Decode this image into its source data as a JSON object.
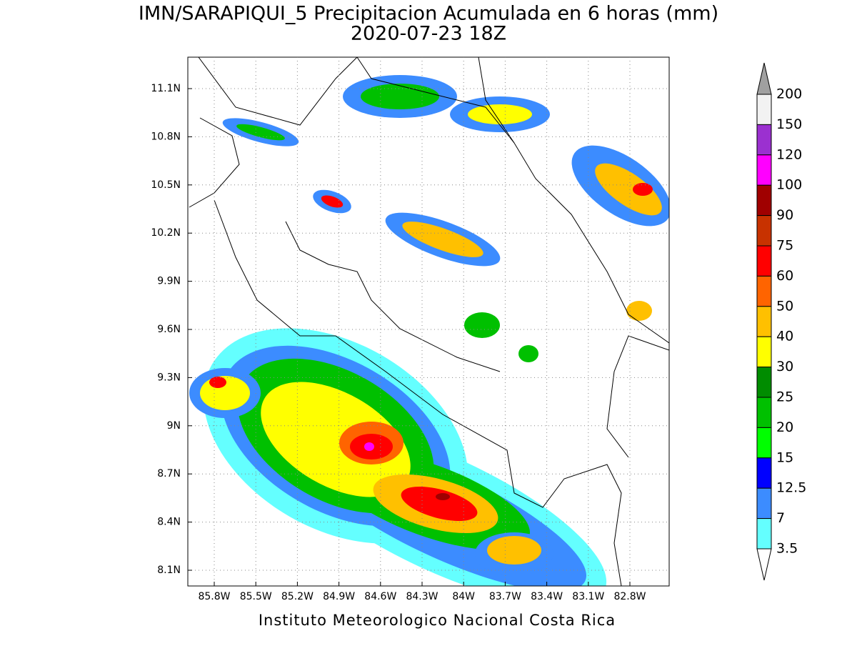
{
  "map": {
    "title": "IMN/SARAPIQUI_5 Precipitacion Acumulada en 6 horas (mm)",
    "subtitle": "2020-07-23 18Z",
    "lon_ticks": [
      "85.8W",
      "85.5W",
      "85.2W",
      "84.9W",
      "84.6W",
      "84.3W",
      "84W",
      "83.7W",
      "83.4W",
      "83.1W",
      "82.8W"
    ],
    "lat_ticks": [
      "11.1N",
      "10.8N",
      "10.5N",
      "10.2N",
      "9.9N",
      "9.6N",
      "9.3N",
      "9N",
      "8.7N",
      "8.4N",
      "8.1N"
    ],
    "colorbar": {
      "levels": [
        200,
        150,
        120,
        100,
        90,
        75,
        60,
        50,
        40,
        30,
        25,
        20,
        15,
        12.5,
        7,
        3.5
      ],
      "colors": [
        "#f2f2f2",
        "#9b30d0",
        "#ff00ff",
        "#a00000",
        "#c83200",
        "#ff0000",
        "#ff6400",
        "#ffc000",
        "#ffff00",
        "#008c00",
        "#00c000",
        "#00ff00",
        "#0000ff",
        "#3c8cff",
        "#64ffff"
      ],
      "over_color": "#a0a0a0",
      "under_color": "#ffffff"
    },
    "credit": "Instituto Meteorologico Nacional Costa Rica"
  }
}
